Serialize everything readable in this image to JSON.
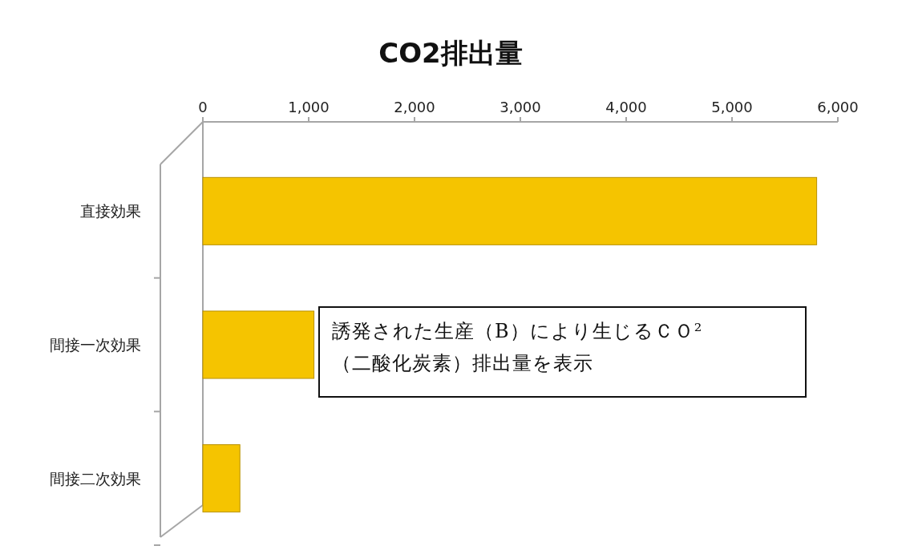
{
  "chart_data": {
    "type": "bar",
    "orientation": "horizontal",
    "title": "CO2排出量",
    "categories": [
      "直接効果",
      "間接一次効果",
      "間接二次効果"
    ],
    "values": [
      5800,
      1050,
      350
    ],
    "color": "#f5c400",
    "xlim": [
      0,
      6000
    ],
    "xticks": [
      0,
      {
        "value": 1000,
        "label": "1,000"
      },
      {
        "value": 2000,
        "label": "2,000"
      },
      {
        "value": 3000,
        "label": "3,000"
      },
      {
        "value": 4000,
        "label": "4,000"
      },
      {
        "value": 5000,
        "label": "5,000"
      },
      {
        "value": 6000,
        "label": "6,000"
      }
    ],
    "annotations": [
      "誘発された生産（B）により生じるＣＯ²\n（二酸化炭素）排出量を表示"
    ]
  }
}
